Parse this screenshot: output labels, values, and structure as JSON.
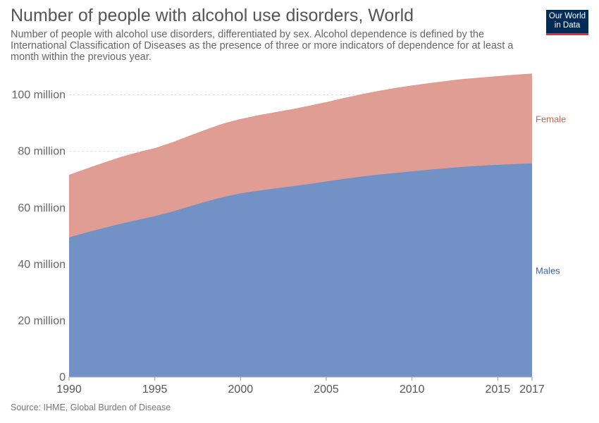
{
  "header": {
    "title": "Number of people with alcohol use disorders, World",
    "subtitle": "Number of people with alcohol use disorders, differentiated by sex. Alcohol dependence is defined by the International Classification of Diseases as the presence of three or more indicators of dependence for at least a month within the previous year."
  },
  "logo": {
    "line1": "Our World",
    "line2": "in Data"
  },
  "source": "Source: IHME, Global Burden of Disease",
  "chart_data": {
    "type": "area",
    "stacked": true,
    "title": "Number of people with alcohol use disorders, World",
    "x": [
      1990,
      1991,
      1992,
      1993,
      1994,
      1995,
      1996,
      1997,
      1998,
      1999,
      2000,
      2001,
      2002,
      2003,
      2004,
      2005,
      2006,
      2007,
      2008,
      2009,
      2010,
      2011,
      2012,
      2013,
      2014,
      2015,
      2016,
      2017
    ],
    "series": [
      {
        "name": "Males",
        "color": "#6d8ec3",
        "values": [
          49.5,
          51.2,
          52.8,
          54.3,
          55.7,
          57.0,
          58.6,
          60.4,
          62.2,
          63.8,
          65.1,
          66.0,
          66.8,
          67.6,
          68.4,
          69.3,
          70.2,
          71.0,
          71.7,
          72.3,
          72.9,
          73.5,
          74.0,
          74.5,
          74.9,
          75.2,
          75.5,
          75.7
        ]
      },
      {
        "name": "Female",
        "color": "#de9a91",
        "values": [
          22.0,
          22.5,
          23.0,
          23.5,
          23.8,
          24.0,
          24.4,
          24.9,
          25.4,
          25.9,
          26.2,
          26.6,
          26.9,
          27.2,
          27.6,
          28.0,
          28.5,
          29.0,
          29.5,
          30.0,
          30.3,
          30.5,
          30.8,
          31.0,
          31.1,
          31.3,
          31.5,
          31.7
        ]
      }
    ],
    "ylim": [
      0,
      107.4
    ],
    "y_ticks": [
      0,
      20,
      40,
      60,
      80,
      100
    ],
    "y_tick_labels": [
      "0",
      "20 million",
      "40 million",
      "60 million",
      "80 million",
      "100 million"
    ],
    "x_ticks": [
      1990,
      1995,
      2000,
      2005,
      2010,
      2015,
      2017
    ],
    "x_tick_labels": [
      "1990",
      "1995",
      "2000",
      "2005",
      "2010",
      "2015",
      "2017"
    ],
    "grid": true,
    "legend": "inline-right"
  }
}
